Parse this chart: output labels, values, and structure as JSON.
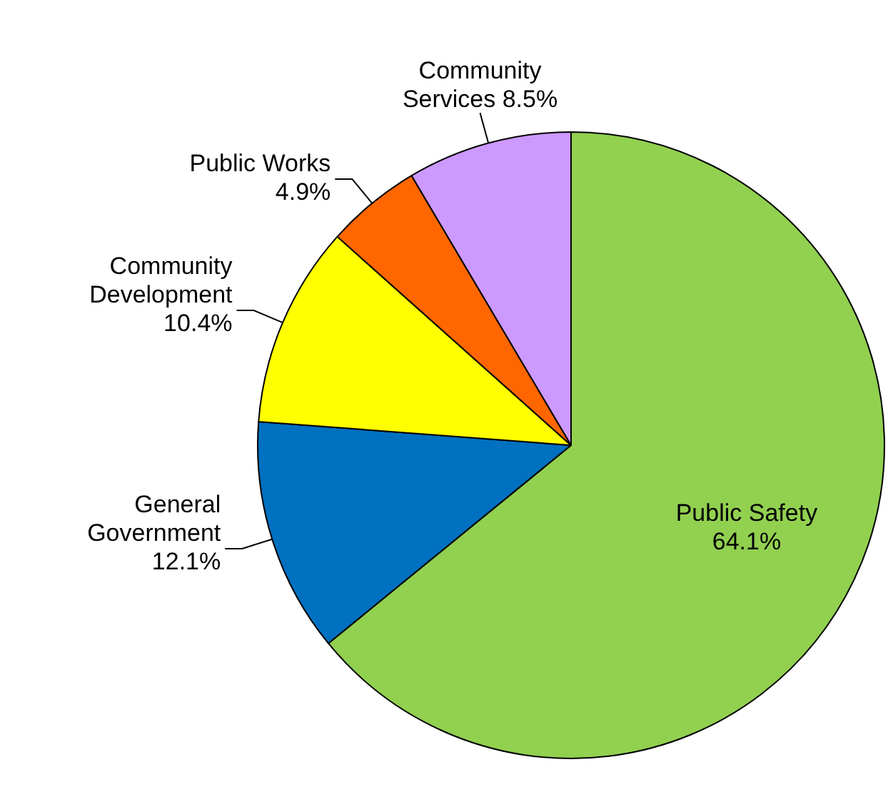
{
  "chart_data": {
    "type": "pie",
    "categories": [
      "Public Safety",
      "General Government",
      "Community Development",
      "Public Works",
      "Community Services"
    ],
    "values": [
      64.1,
      12.1,
      10.4,
      4.9,
      8.5
    ],
    "value_labels": [
      "64.1%",
      "12.1%",
      "10.4%",
      "4.9%",
      "8.5%"
    ],
    "colors": [
      "#92d050",
      "#0070c0",
      "#ffff00",
      "#ff6600",
      "#cc99ff"
    ],
    "legend": false
  }
}
